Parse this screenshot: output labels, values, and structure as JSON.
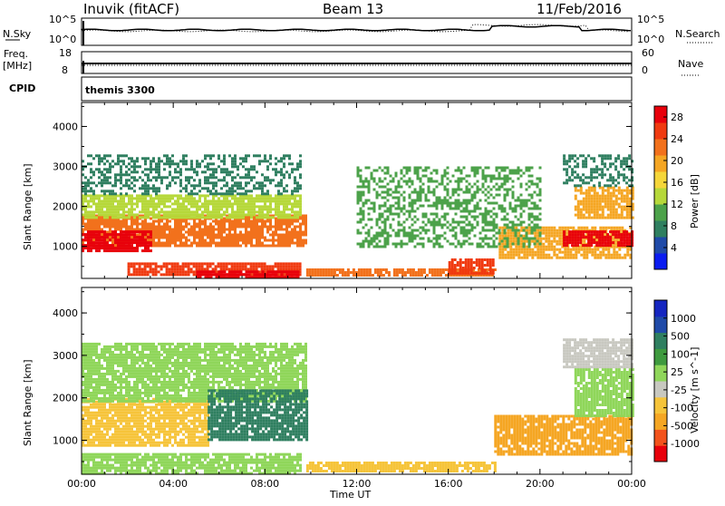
{
  "header": {
    "station": "Inuvik (fitACF)",
    "beam": "Beam 13",
    "date": "11/Feb/2016"
  },
  "top_panels": {
    "nsky_label": "N.Sky",
    "nsearch_label": "N.Search",
    "noise_ticks": [
      "10^5",
      "10^0"
    ],
    "noise_ticks_right": [
      "10^5",
      "10^0"
    ],
    "freq_label_1": "Freq.",
    "freq_label_2": "[MHz]",
    "freq_ticks": [
      "18",
      "8"
    ],
    "nave_label": "Nave",
    "nave_ticks": [
      "60",
      "0"
    ],
    "cpid_label": "CPID",
    "cpid_value": "themis 3300"
  },
  "colors": {
    "power_scale": [
      "#0a1cf0",
      "#1f4aa8",
      "#2f7f60",
      "#4ca24a",
      "#b6d83a",
      "#f5d63a",
      "#f5a623",
      "#f2711c",
      "#f03a10",
      "#e8000b"
    ],
    "velocity_scale": [
      "#e8000b",
      "#f2531c",
      "#f5a623",
      "#f6c43a",
      "#c8c8c0",
      "#8fd65a",
      "#3e9a3e",
      "#2f7f60",
      "#1f4aa8",
      "#1526c0"
    ]
  },
  "chart_data": [
    {
      "type": "heatmap",
      "name": "power-panel",
      "xlabel": "",
      "ylabel": "Slant Range [km]",
      "xlim": [
        0,
        24
      ],
      "ylim": [
        200,
        4600
      ],
      "yticks": [
        "1000",
        "2000",
        "3000",
        "4000"
      ],
      "colorbar_label": "Power [dB]",
      "colorbar_ticks": [
        "28",
        "24",
        "20",
        "16",
        "12",
        "8",
        "4"
      ],
      "colorbar_range": [
        0,
        30
      ],
      "bands": [
        {
          "t0": 0.0,
          "t1": 9.8,
          "r0": 1000,
          "r1": 1800,
          "value": 22
        },
        {
          "t0": 0.0,
          "t1": 3.0,
          "r0": 900,
          "r1": 1400,
          "value": 28
        },
        {
          "t0": 0.0,
          "t1": 9.5,
          "r0": 1700,
          "r1": 2300,
          "value": 14
        },
        {
          "t0": 0.0,
          "t1": 9.5,
          "r0": 2300,
          "r1": 3300,
          "value": 8
        },
        {
          "t0": 2.0,
          "t1": 9.5,
          "r0": 300,
          "r1": 600,
          "value": 26
        },
        {
          "t0": 5.0,
          "t1": 9.5,
          "r0": 250,
          "r1": 400,
          "value": 29
        },
        {
          "t0": 9.8,
          "t1": 18.0,
          "r0": 250,
          "r1": 450,
          "value": 22
        },
        {
          "t0": 16.0,
          "t1": 18.0,
          "r0": 300,
          "r1": 700,
          "value": 24
        },
        {
          "t0": 18.2,
          "t1": 24.0,
          "r0": 700,
          "r1": 1500,
          "value": 18
        },
        {
          "t0": 21.0,
          "t1": 24.0,
          "r0": 1000,
          "r1": 1400,
          "value": 27
        },
        {
          "t0": 21.5,
          "t1": 24.0,
          "r0": 1700,
          "r1": 2500,
          "value": 20
        },
        {
          "t0": 21.0,
          "t1": 24.0,
          "r0": 2500,
          "r1": 3300,
          "value": 8
        },
        {
          "t0": 12.0,
          "t1": 20.0,
          "r0": 1000,
          "r1": 3000,
          "value": 10
        }
      ]
    },
    {
      "type": "heatmap",
      "name": "velocity-panel",
      "xlabel": "Time UT",
      "ylabel": "Slant Range [km]",
      "xlim": [
        0,
        24
      ],
      "ylim": [
        200,
        4600
      ],
      "xticks": [
        "00:00",
        "04:00",
        "08:00",
        "12:00",
        "16:00",
        "20:00",
        "00:00"
      ],
      "yticks": [
        "1000",
        "2000",
        "3000",
        "4000"
      ],
      "colorbar_label": "Velocity [m s^-1]",
      "colorbar_ticks": [
        "1000",
        "500",
        "100",
        "25",
        "-25",
        "-100",
        "-500",
        "-1000"
      ],
      "bands": [
        {
          "t0": 0.0,
          "t1": 5.5,
          "r0": 900,
          "r1": 2000,
          "value": -400
        },
        {
          "t0": 0.0,
          "t1": 9.8,
          "r0": 1900,
          "r1": 3300,
          "value": 0
        },
        {
          "t0": 5.5,
          "t1": 9.8,
          "r0": 1000,
          "r1": 2200,
          "value": 200
        },
        {
          "t0": 0.0,
          "t1": 9.5,
          "r0": 250,
          "r1": 700,
          "value": 10
        },
        {
          "t0": 9.8,
          "t1": 18.0,
          "r0": 250,
          "r1": 500,
          "value": -150
        },
        {
          "t0": 18.0,
          "t1": 24.0,
          "r0": 700,
          "r1": 1600,
          "value": -500
        },
        {
          "t0": 21.5,
          "t1": 24.0,
          "r0": 1600,
          "r1": 2700,
          "value": 0
        },
        {
          "t0": 21.0,
          "t1": 24.0,
          "r0": 2700,
          "r1": 3400,
          "value": -60
        }
      ]
    }
  ]
}
